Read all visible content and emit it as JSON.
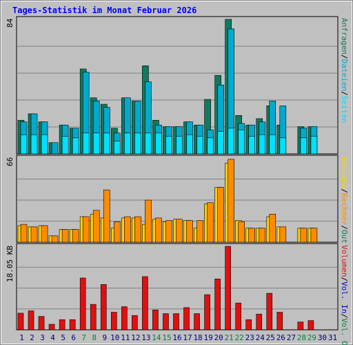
{
  "title": "Tages-Statistik im Monat Februar 2026",
  "colors": {
    "background": "#c0c0c0",
    "plot_bg": "#c0c0c0",
    "anfragen": "#0f7a5f",
    "dateien": "#00aacc",
    "seiten": "#00e0ff",
    "besuche": "#ffd000",
    "rechner": "#ff8c00",
    "volumen": "#e01010",
    "weekday_label": "#000080",
    "weekend_label": "#008040"
  },
  "right_labels": {
    "top": [
      "Anfragen",
      "/",
      "Dateien",
      "/",
      "Seiten"
    ],
    "mid": [
      "Besuche",
      "/",
      "Rechner",
      "/",
      "Out"
    ],
    "bot": [
      "Volumen",
      "/",
      "Vol. In",
      "/",
      "Vol. Out"
    ]
  },
  "chart_data": [
    {
      "type": "bar",
      "panel": "hits",
      "ymax_label": "84",
      "ylim": [
        0,
        84
      ],
      "categories": [
        "1",
        "2",
        "3",
        "4",
        "5",
        "6",
        "7",
        "8",
        "9",
        "10",
        "11",
        "12",
        "13",
        "14",
        "15",
        "16",
        "17",
        "18",
        "19",
        "20",
        "21",
        "22",
        "23",
        "24",
        "25",
        "26",
        "27",
        "28",
        "29",
        "30",
        "31"
      ],
      "weekend": [
        "7",
        "8",
        "14",
        "15",
        "21",
        "22",
        "28",
        "29"
      ],
      "grid": true,
      "series": [
        {
          "name": "Anfragen",
          "values": [
            21,
            25,
            20,
            7,
            18,
            16,
            53,
            35,
            31,
            16,
            35,
            33,
            55,
            21,
            17,
            17,
            20,
            18,
            34,
            49,
            84,
            24,
            18,
            22,
            30,
            18,
            0,
            17,
            17,
            0,
            0
          ]
        },
        {
          "name": "Dateien",
          "values": [
            20,
            25,
            20,
            7,
            18,
            16,
            51,
            33,
            29,
            13,
            35,
            33,
            45,
            18,
            17,
            17,
            20,
            18,
            15,
            43,
            78,
            19,
            18,
            20,
            33,
            30,
            0,
            16,
            17,
            0,
            0
          ]
        },
        {
          "name": "Seiten",
          "values": [
            12,
            12,
            12,
            0,
            11,
            10,
            13,
            13,
            13,
            8,
            13,
            13,
            13,
            13,
            11,
            11,
            12,
            11,
            10,
            14,
            16,
            15,
            11,
            12,
            12,
            10,
            0,
            10,
            11,
            0,
            0
          ]
        }
      ]
    },
    {
      "type": "bar",
      "panel": "visits",
      "ymax_label": "66",
      "ylim": [
        0,
        66
      ],
      "categories": [
        "1",
        "2",
        "3",
        "4",
        "5",
        "6",
        "7",
        "8",
        "9",
        "10",
        "11",
        "12",
        "13",
        "14",
        "15",
        "16",
        "17",
        "18",
        "19",
        "20",
        "21",
        "22",
        "23",
        "24",
        "25",
        "26",
        "27",
        "28",
        "29",
        "30",
        "31"
      ],
      "grid": true,
      "series": [
        {
          "name": "Besuche",
          "values": [
            13,
            12,
            13,
            5,
            10,
            10,
            20,
            22,
            19,
            11,
            19,
            19,
            14,
            18,
            16,
            18,
            17,
            11,
            30,
            43,
            62,
            17,
            11,
            11,
            20,
            12,
            0,
            11,
            11,
            0,
            0
          ]
        },
        {
          "name": "Rechner",
          "values": [
            14,
            12,
            13,
            5,
            10,
            10,
            20,
            25,
            41,
            16,
            20,
            20,
            33,
            19,
            17,
            18,
            17,
            17,
            31,
            43,
            65,
            16,
            11,
            11,
            22,
            12,
            0,
            11,
            11,
            0,
            0
          ]
        },
        {
          "name": "Out",
          "values": [
            0,
            0,
            0,
            0,
            0,
            0,
            0,
            0,
            0,
            0,
            0,
            0,
            0,
            0,
            0,
            0,
            0,
            0,
            0,
            0,
            0,
            0,
            0,
            0,
            0,
            0,
            0,
            0,
            0,
            0,
            0
          ]
        }
      ]
    },
    {
      "type": "bar",
      "panel": "volume",
      "ymax_label": "18.05 KB",
      "ylim": [
        0,
        18.05
      ],
      "categories": [
        "1",
        "2",
        "3",
        "4",
        "5",
        "6",
        "7",
        "8",
        "9",
        "10",
        "11",
        "12",
        "13",
        "14",
        "15",
        "16",
        "17",
        "18",
        "19",
        "20",
        "21",
        "22",
        "23",
        "24",
        "25",
        "26",
        "27",
        "28",
        "29",
        "30",
        "31"
      ],
      "grid": true,
      "series": [
        {
          "name": "Volumen",
          "values": [
            3.6,
            4.1,
            2.9,
            1.2,
            2.2,
            2.2,
            11.2,
            5.5,
            9.8,
            3.8,
            5.0,
            3.1,
            11.5,
            4.3,
            3.5,
            3.5,
            4.8,
            3.5,
            7.6,
            11.0,
            18.05,
            5.8,
            2.2,
            3.4,
            7.9,
            3.8,
            0,
            1.7,
            2.0,
            0,
            0
          ]
        }
      ]
    }
  ]
}
